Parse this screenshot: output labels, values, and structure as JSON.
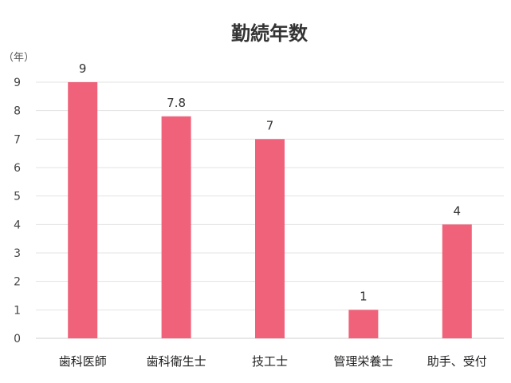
{
  "chart_data": {
    "type": "bar",
    "title": "勤続年数",
    "ylabel": "（年）",
    "categories": [
      "歯科医師",
      "歯科衛生士",
      "技工士",
      "管理栄養士",
      "助手、受付"
    ],
    "values": [
      9,
      7.8,
      7,
      1,
      4
    ],
    "data_labels": [
      "9",
      "7.8",
      "7",
      "1",
      "4"
    ],
    "ylim": [
      0,
      9
    ],
    "yticks": [
      0,
      1,
      2,
      3,
      4,
      5,
      6,
      7,
      8,
      9
    ],
    "grid": true,
    "bar_color": "#ef6279"
  }
}
